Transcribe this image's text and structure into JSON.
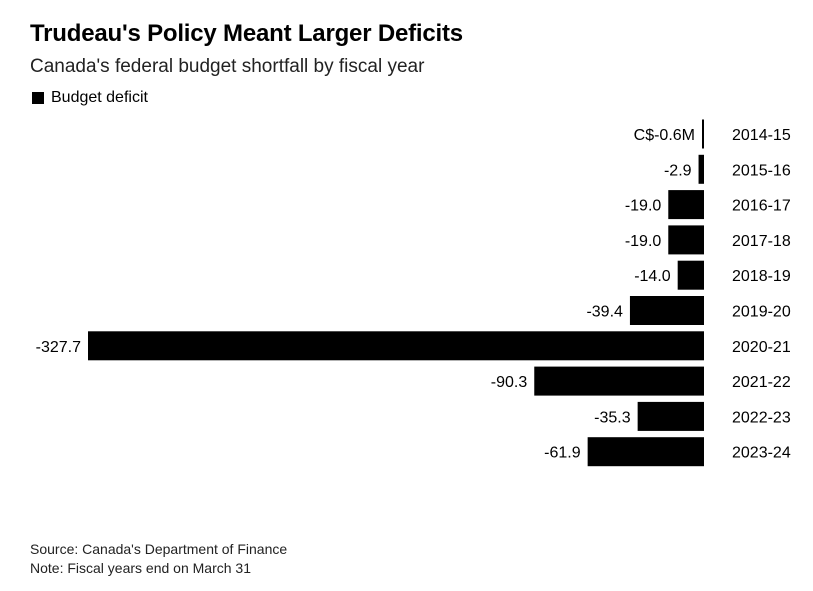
{
  "title": "Trudeau's Policy Meant Larger Deficits",
  "subtitle": "Canada's federal budget shortfall by fiscal year",
  "legend_label": "Budget deficit",
  "footer": {
    "source": "Source: Canada's Department of Finance",
    "note": "Note: Fiscal years end on March 31"
  },
  "colors": {
    "bar": "#000000",
    "text": "#000000",
    "background": "#ffffff"
  },
  "chart_data": {
    "type": "bar",
    "orientation": "horizontal",
    "categories": [
      "2014-15",
      "2015-16",
      "2016-17",
      "2017-18",
      "2018-19",
      "2019-20",
      "2020-21",
      "2021-22",
      "2022-23",
      "2023-24"
    ],
    "series": [
      {
        "name": "Budget deficit",
        "values": [
          -0.6,
          -2.9,
          -19.0,
          -19.0,
          -14.0,
          -39.4,
          -327.7,
          -90.3,
          -35.3,
          -61.9
        ],
        "labels": [
          "C$-0.6M",
          "-2.9",
          "-19.0",
          "-19.0",
          "-14.0",
          "-39.4",
          "-327.7",
          "-90.3",
          "-35.3",
          "-61.9"
        ]
      }
    ],
    "xlim": [
      -327.7,
      0
    ],
    "category_axis_position": "right",
    "grid": false,
    "legend_position": "top-left"
  }
}
